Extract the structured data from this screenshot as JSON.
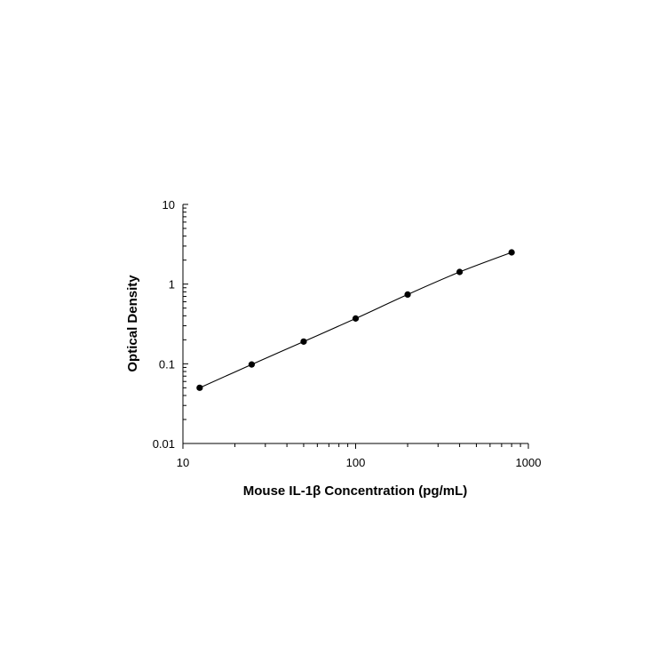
{
  "chart_data": {
    "type": "scatter",
    "title": "",
    "xlabel": "Mouse IL-1β Concentration (pg/mL)",
    "ylabel": "Optical Density",
    "xscale": "log",
    "yscale": "log",
    "xlim": [
      10,
      1000
    ],
    "ylim": [
      0.01,
      10
    ],
    "x_ticks": [
      "10",
      "100",
      "1000"
    ],
    "y_ticks": [
      "0.01",
      "0.1",
      "1",
      "10"
    ],
    "grid": false,
    "legend": "none",
    "series": [
      {
        "x": [
          12.5,
          25,
          50,
          100,
          200,
          400,
          800
        ],
        "y": [
          0.05,
          0.098,
          0.19,
          0.37,
          0.74,
          1.42,
          2.5
        ],
        "marker": "filled-circle",
        "fit_line": "smooth-curve",
        "color": "#000000"
      }
    ]
  }
}
